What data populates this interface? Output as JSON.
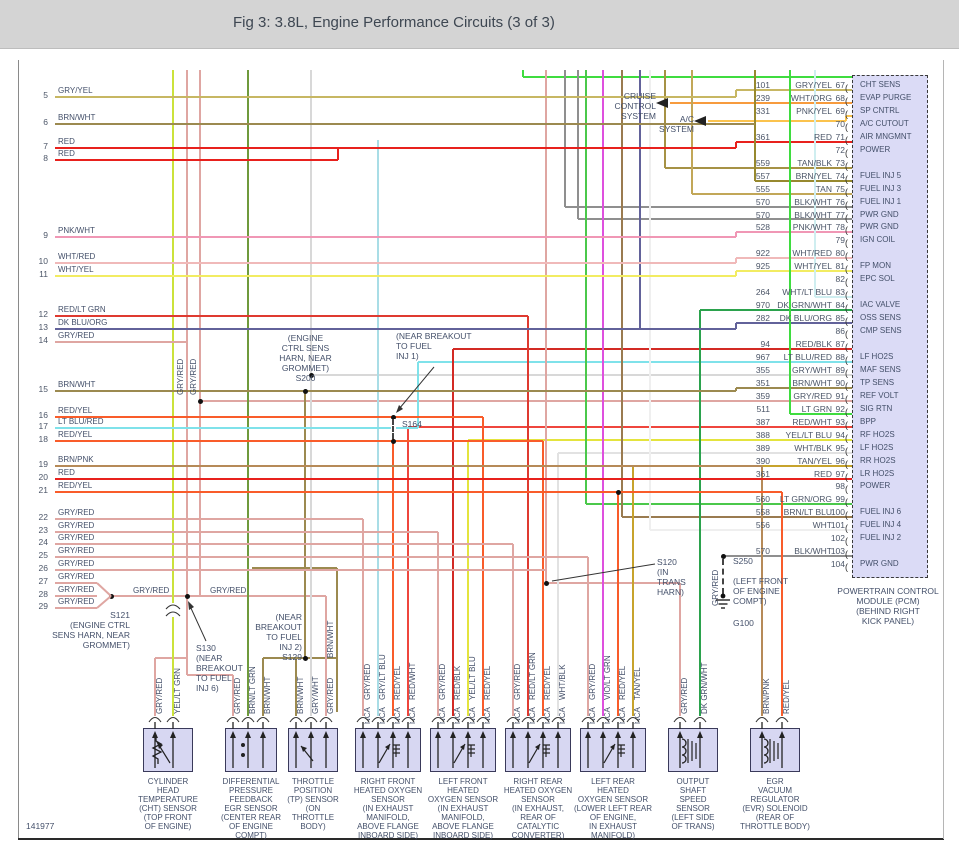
{
  "title": "Fig 3: 3.8L, Engine Performance Circuits (3 of 3)",
  "figure_id": "141977",
  "nca_label": "NCA",
  "colors": {
    "GRY/YEL": "#c7b763",
    "BRN/WHT": "#9c8a50",
    "RED": "#e8211d",
    "PNK/WHT": "#f097b5",
    "WHT/RED": "#f0b9b9",
    "WHT/YEL": "#f2ec62",
    "RED/LT GRN": "#df3a30",
    "DK BLU/ORG": "#62629a",
    "GRY/RED": "#dfa6a2",
    "RED/YEL": "#f95c2a",
    "LT BLU/RED": "#7fe2ea",
    "BRN/PNK": "#b68a58",
    "WHT/ORG": "#f79b3d",
    "PNK/YEL": "#fbc34e",
    "TAN/BLK": "#a69245",
    "BRN/YEL": "#97892f",
    "TAN": "#c2a758",
    "BLK/WHT": "#8f8f8f",
    "WHT/LT BLU": "#cfeef0",
    "DK GRN/WHT": "#2ba24d",
    "RED/BLK": "#d32a24",
    "GRY/WHT": "#d8d8d8",
    "LT GRN": "#3fdc3f",
    "RED/WHT": "#ef463d",
    "YEL/LT BLU": "#e4e43e",
    "WHT/BLK": "#e2e2e2",
    "TAN/YEL": "#c7a32c",
    "LT GRN/ORG": "#4bc84b",
    "BRN/LT BLU": "#9a7b50",
    "WHT": "#efefef",
    "VIO/LT GRN": "#de50de",
    "GRY/LT BLU": "#a9dde6",
    "BRN/LT GRN": "#6f9a3c",
    "YEL/LT GRN": "#cbe23b"
  },
  "left_pins": [
    {
      "pin": "5",
      "color": "GRY/YEL"
    },
    {
      "pin": "6",
      "color": "BRN/WHT"
    },
    {
      "pin": "7",
      "color": "RED"
    },
    {
      "pin": "8",
      "color": "RED"
    },
    {
      "pin": "9",
      "color": "PNK/WHT"
    },
    {
      "pin": "10",
      "color": "WHT/RED"
    },
    {
      "pin": "11",
      "color": "WHT/YEL"
    },
    {
      "pin": "12",
      "color": "RED/LT GRN"
    },
    {
      "pin": "13",
      "color": "DK BLU/ORG"
    },
    {
      "pin": "14",
      "color": "GRY/RED"
    },
    {
      "pin": "15",
      "color": "BRN/WHT"
    },
    {
      "pin": "16",
      "color": "RED/YEL"
    },
    {
      "pin": "17",
      "color": "LT BLU/RED"
    },
    {
      "pin": "18",
      "color": "RED/YEL"
    },
    {
      "pin": "19",
      "color": "BRN/PNK"
    },
    {
      "pin": "20",
      "color": "RED"
    },
    {
      "pin": "21",
      "color": "RED/YEL"
    },
    {
      "pin": "22",
      "color": "GRY/RED"
    },
    {
      "pin": "23",
      "color": "GRY/RED"
    },
    {
      "pin": "24",
      "color": "GRY/RED"
    },
    {
      "pin": "25",
      "color": "GRY/RED"
    },
    {
      "pin": "26",
      "color": "GRY/RED"
    },
    {
      "pin": "27",
      "color": "GRY/RED"
    },
    {
      "pin": "28",
      "color": "GRY/RED"
    },
    {
      "pin": "29",
      "color": "GRY/RED"
    }
  ],
  "pcm": {
    "caption": "POWERTRAIN CONTROL\nMODULE (PCM)\n(BEHIND RIGHT\nKICK PANEL)",
    "rows": [
      {
        "pin": "67",
        "circuit": "101",
        "color": "GRY/YEL",
        "label": "CHT SENS"
      },
      {
        "pin": "68",
        "circuit": "239",
        "color": "WHT/ORG",
        "label": "EVAP PURGE"
      },
      {
        "pin": "69",
        "circuit": "331",
        "color": "PNK/YEL",
        "label": "SP CNTRL"
      },
      {
        "pin": "70",
        "circuit": "",
        "color": "",
        "label": "A/C CUTOUT"
      },
      {
        "pin": "71",
        "circuit": "361",
        "color": "RED",
        "label": "AIR MNGMNT"
      },
      {
        "pin": "72",
        "circuit": "",
        "color": "",
        "label": "POWER"
      },
      {
        "pin": "73",
        "circuit": "559",
        "color": "TAN/BLK",
        "label": ""
      },
      {
        "pin": "74",
        "circuit": "557",
        "color": "BRN/YEL",
        "label": "FUEL INJ 5"
      },
      {
        "pin": "75",
        "circuit": "555",
        "color": "TAN",
        "label": "FUEL INJ 3"
      },
      {
        "pin": "76",
        "circuit": "570",
        "color": "BLK/WHT",
        "label": "FUEL INJ 1"
      },
      {
        "pin": "77",
        "circuit": "570",
        "color": "BLK/WHT",
        "label": "PWR GND"
      },
      {
        "pin": "78",
        "circuit": "528",
        "color": "PNK/WHT",
        "label": "PWR GND"
      },
      {
        "pin": "79",
        "circuit": "",
        "color": "",
        "label": "IGN COIL"
      },
      {
        "pin": "80",
        "circuit": "922",
        "color": "WHT/RED",
        "label": ""
      },
      {
        "pin": "81",
        "circuit": "925",
        "color": "WHT/YEL",
        "label": "FP MON"
      },
      {
        "pin": "82",
        "circuit": "",
        "color": "",
        "label": "EPC SOL"
      },
      {
        "pin": "83",
        "circuit": "264",
        "color": "WHT/LT BLU",
        "label": ""
      },
      {
        "pin": "84",
        "circuit": "970",
        "color": "DK GRN/WHT",
        "label": "IAC VALVE"
      },
      {
        "pin": "85",
        "circuit": "282",
        "color": "DK BLU/ORG",
        "label": "OSS SENS"
      },
      {
        "pin": "86",
        "circuit": "",
        "color": "",
        "label": "CMP SENS"
      },
      {
        "pin": "87",
        "circuit": "94",
        "color": "RED/BLK",
        "label": ""
      },
      {
        "pin": "88",
        "circuit": "967",
        "color": "LT BLU/RED",
        "label": "LF HO2S"
      },
      {
        "pin": "89",
        "circuit": "355",
        "color": "GRY/WHT",
        "label": "MAF SENS"
      },
      {
        "pin": "90",
        "circuit": "351",
        "color": "BRN/WHT",
        "label": "TP SENS"
      },
      {
        "pin": "91",
        "circuit": "359",
        "color": "GRY/RED",
        "label": "REF VOLT"
      },
      {
        "pin": "92",
        "circuit": "511",
        "color": "LT GRN",
        "label": "SIG RTN"
      },
      {
        "pin": "93",
        "circuit": "387",
        "color": "RED/WHT",
        "label": "BPP"
      },
      {
        "pin": "94",
        "circuit": "388",
        "color": "YEL/LT BLU",
        "label": "RF HO2S"
      },
      {
        "pin": "95",
        "circuit": "389",
        "color": "WHT/BLK",
        "label": "LF HO2S"
      },
      {
        "pin": "96",
        "circuit": "390",
        "color": "TAN/YEL",
        "label": "RR HO2S"
      },
      {
        "pin": "97",
        "circuit": "361",
        "color": "RED",
        "label": "LR HO2S"
      },
      {
        "pin": "98",
        "circuit": "",
        "color": "",
        "label": "POWER"
      },
      {
        "pin": "99",
        "circuit": "560",
        "color": "LT GRN/ORG",
        "label": ""
      },
      {
        "pin": "100",
        "circuit": "558",
        "color": "BRN/LT BLU",
        "label": "FUEL INJ 6"
      },
      {
        "pin": "101",
        "circuit": "556",
        "color": "WHT",
        "label": "FUEL INJ 4"
      },
      {
        "pin": "102",
        "circuit": "",
        "color": "",
        "label": "FUEL INJ 2"
      },
      {
        "pin": "103",
        "circuit": "570",
        "color": "BLK/WHT",
        "label": ""
      },
      {
        "pin": "104",
        "circuit": "",
        "color": "",
        "label": "PWR GND"
      }
    ]
  },
  "systems": {
    "cruise": "CRUISE\nCONTROL\nSYSTEM",
    "ac": "A/C\nSYSTEM"
  },
  "annotations": {
    "s200": "(ENGINE\nCTRL SENS\nHARN, NEAR\nGROMMET)\nS200",
    "inj1": "(NEAR BREAKOUT\nTO FUEL\nINJ 1)",
    "s164": "S164",
    "s121": "S121\n(ENGINE CTRL\nSENS HARN, NEAR\nGROMMET)",
    "s130": "S130\n(NEAR\nBREAKOUT\nTO FUEL\nINJ 6)",
    "s129": "(NEAR\nBREAKOUT\nTO FUEL\nINJ 2)\nS129",
    "s120": "S120\n(IN\nTRANS\nHARN)",
    "s250": "S250",
    "left_front": "(LEFT FRONT\nOF ENGINE\nCOMPT)",
    "g100": "G100"
  },
  "wire_labels": [
    {
      "text": "GRY/RED"
    },
    {
      "text": "GRY/RED"
    },
    {
      "text": "BRN/WHT"
    },
    {
      "text": "GRY/RED"
    },
    {
      "text": "GRY/RED"
    },
    {
      "text": "GRY/RED"
    }
  ],
  "sensors": [
    {
      "name": "cht-sensor",
      "icon": "thermistor",
      "caption": "CYLINDER\nHEAD\nTEMPERATURE\n(CHT) SENSOR\n(TOP FRONT\nOF ENGINE)",
      "wires": [
        {
          "color": "GRY/RED"
        },
        {
          "color": "YEL/LT GRN"
        }
      ]
    },
    {
      "name": "dpfe-egr-sensor",
      "icon": "dots",
      "caption": "DIFFERENTIAL\nPRESSURE\nFEEDBACK\nEGR SENSOR\n(CENTER REAR\nOF ENGINE\nCOMPT)",
      "wires": [
        {
          "color": "GRY/RED"
        },
        {
          "color": "BRN/LT GRN"
        },
        {
          "color": "BRN/WHT"
        }
      ]
    },
    {
      "name": "tp-sensor",
      "icon": "pot",
      "caption": "THROTTLE\nPOSITION\n(TP) SENSOR\n(ON\nTHROTTLE\nBODY)",
      "wires": [
        {
          "color": "BRN/WHT"
        },
        {
          "color": "GRY/WHT"
        },
        {
          "color": "GRY/RED"
        }
      ]
    },
    {
      "name": "rf-ho2s-sensor",
      "icon": "o2",
      "nca": true,
      "caption": "RIGHT FRONT\nHEATED OXYGEN\nSENSOR\n(IN EXHAUST\nMANIFOLD,\nABOVE FLANGE\nINBOARD SIDE)",
      "wires": [
        {
          "color": "GRY/RED"
        },
        {
          "color": "GRY/LT BLU"
        },
        {
          "color": "RED/YEL"
        },
        {
          "color": "RED/WHT"
        }
      ]
    },
    {
      "name": "lf-ho2s-sensor",
      "icon": "o2",
      "nca": true,
      "caption": "LEFT FRONT\nHEATED\nOXYGEN SENSOR\n(IN EXHAUST\nMANIFOLD,\nABOVE FLANGE\nINBOARD SIDE)",
      "wires": [
        {
          "color": "GRY/RED"
        },
        {
          "color": "RED/BLK"
        },
        {
          "color": "YEL/LT BLU"
        },
        {
          "color": "RED/YEL"
        }
      ]
    },
    {
      "name": "rr-ho2s-sensor",
      "icon": "o2",
      "nca": true,
      "caption": "RIGHT REAR\nHEATED OXYGEN\nSENSOR\n(IN EXHAUST,\nREAR OF\nCATALYTIC\nCONVERTER)",
      "wires": [
        {
          "color": "GRY/RED"
        },
        {
          "color": "RED/LT GRN"
        },
        {
          "color": "RED/YEL"
        },
        {
          "color": "WHT/BLK"
        }
      ]
    },
    {
      "name": "lr-ho2s-sensor",
      "icon": "o2",
      "nca": true,
      "caption": "LEFT REAR\nHEATED\nOXYGEN SENSOR\n(LOWER LEFT REAR\nOF ENGINE,\nIN EXHAUST\nMANIFOLD)",
      "wires": [
        {
          "color": "GRY/RED"
        },
        {
          "color": "VIO/LT GRN"
        },
        {
          "color": "RED/YEL"
        },
        {
          "color": "TAN/YEL"
        }
      ]
    },
    {
      "name": "oss-sensor",
      "icon": "coil",
      "caption": "OUTPUT\nSHAFT\nSPEED\nSENSOR\n(LEFT SIDE\nOF TRANS)",
      "wires": [
        {
          "color": "GRY/RED"
        },
        {
          "color": "DK GRN/WHT"
        }
      ]
    },
    {
      "name": "evr-solenoid",
      "icon": "coil",
      "caption": "EGR\nVACUUM\nREGULATOR\n(EVR) SOLENOID\n(REAR OF\nTHROTTLE BODY)",
      "wires": [
        {
          "color": "BRN/PNK"
        },
        {
          "color": "RED/YEL"
        }
      ]
    }
  ]
}
